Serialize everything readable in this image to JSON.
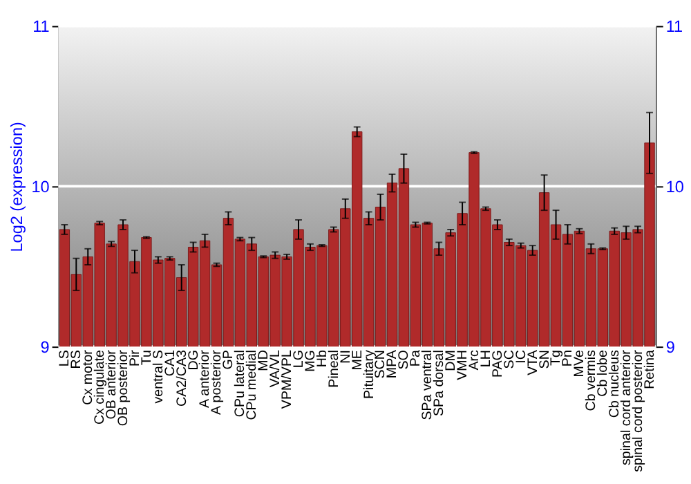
{
  "chart_data": {
    "type": "bar",
    "ylabel": "Log2 (expression)",
    "categories": [
      "LS",
      "RS",
      "Cx motor",
      "Cx cingulate",
      "OB anterior",
      "OB posterior",
      "Pir",
      "Tu",
      "ventral S",
      "CA1",
      "CA2/CA3",
      "DG",
      "A anterior",
      "A posterior",
      "GP",
      "CPu lateral",
      "CPu medial",
      "MD",
      "VA/VL",
      "VPM/VPL",
      "LG",
      "MG",
      "Hb",
      "Pineal",
      "NI",
      "ME",
      "Pituitary",
      "SCN",
      "MPA",
      "SO",
      "Pa",
      "SPa ventral",
      "SPa dorsal",
      "DM",
      "VMH",
      "Arc",
      "LH",
      "PAG",
      "SC",
      "IC",
      "VTA",
      "SN",
      "Tg",
      "Pn",
      "MVe",
      "Cb vermis",
      "Cb lobe",
      "Cb nucleus",
      "spinal cord anterior",
      "spinal cord posterior",
      "Retina"
    ],
    "series": [
      {
        "color": "#b02a2a",
        "values": [
          9.73,
          9.45,
          9.56,
          9.77,
          9.64,
          9.76,
          9.53,
          9.68,
          9.54,
          9.55,
          9.43,
          9.62,
          9.66,
          9.51,
          9.8,
          9.67,
          9.64,
          9.56,
          9.57,
          9.56,
          9.73,
          9.62,
          9.63,
          9.73,
          9.86,
          10.34,
          9.8,
          9.87,
          10.02,
          10.11,
          9.76,
          9.77,
          9.61,
          9.71,
          9.83,
          10.21,
          9.86,
          9.76,
          9.65,
          9.63,
          9.6,
          9.96,
          9.76,
          9.7,
          9.72,
          9.61,
          9.61,
          9.72,
          9.71,
          9.73,
          10.27
        ],
        "errors": [
          0.03,
          0.1,
          0.05,
          0.01,
          0.015,
          0.03,
          0.07,
          0.005,
          0.02,
          0.01,
          0.08,
          0.03,
          0.04,
          0.01,
          0.04,
          0.01,
          0.04,
          0.005,
          0.02,
          0.015,
          0.06,
          0.02,
          0.005,
          0.015,
          0.06,
          0.03,
          0.04,
          0.08,
          0.055,
          0.09,
          0.015,
          0.005,
          0.04,
          0.02,
          0.07,
          0.005,
          0.01,
          0.03,
          0.02,
          0.015,
          0.03,
          0.11,
          0.09,
          0.06,
          0.015,
          0.03,
          0.005,
          0.02,
          0.04,
          0.02,
          0.19
        ]
      }
    ],
    "ylim": [
      9,
      11
    ],
    "yticks": [
      9,
      10,
      11
    ],
    "y2lim": [
      9,
      11
    ],
    "y2ticks": [
      9,
      10,
      11
    ],
    "grid": "y"
  }
}
